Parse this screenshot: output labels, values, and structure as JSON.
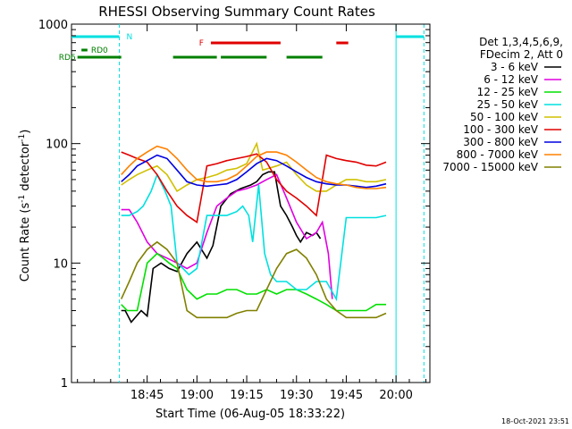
{
  "chart_data": {
    "type": "line",
    "title": "RHESSI Observing Summary Count Rates",
    "xlabel": "Start Time (06-Aug-05 18:33:22)",
    "ylabel_main": "Count Rate (s",
    "ylabel_sup1": "-1",
    "ylabel_mid": " detector",
    "ylabel_sup2": "-1",
    "ylabel_end": ")",
    "yscale": "log",
    "ylim": [
      1,
      1000
    ],
    "xlim_minutes": [
      18.37,
      20.17
    ],
    "x_ticks": [
      {
        "label": "18:45",
        "v": 18.75
      },
      {
        "label": "19:00",
        "v": 19.0
      },
      {
        "label": "19:15",
        "v": 19.25
      },
      {
        "label": "19:30",
        "v": 19.5
      },
      {
        "label": "19:45",
        "v": 19.75
      },
      {
        "label": "20:00",
        "v": 20.0
      }
    ],
    "y_ticks": [
      {
        "label": "1",
        "v": 1
      },
      {
        "label": "10",
        "v": 10
      },
      {
        "label": "100",
        "v": 100
      },
      {
        "label": "1000",
        "v": 1000
      }
    ],
    "legend_header": [
      "Det 1,3,4,5,6,9,",
      "FDecim 2, Att 0"
    ],
    "legend_position": "right",
    "timestamp": "18-Oct-2021 23:51",
    "flags": [
      {
        "label": "N",
        "color": "#00e0e0",
        "segments": [
          [
            18.37,
            18.61
          ],
          [
            20.0,
            20.14
          ]
        ]
      },
      {
        "label": "F",
        "color": "#e00000",
        "segments": [
          [
            19.07,
            19.42
          ],
          [
            19.7,
            19.76
          ]
        ]
      },
      {
        "label": "RD0",
        "color": "#008000",
        "segments": [
          [
            18.42,
            18.45
          ]
        ]
      },
      {
        "label": "RD6",
        "color": "#008000",
        "segments": [
          [
            18.4,
            18.62
          ],
          [
            18.88,
            19.1
          ],
          [
            19.12,
            19.35
          ],
          [
            19.45,
            19.63
          ]
        ]
      }
    ],
    "series": [
      {
        "name": "3 - 6 keV",
        "color": "#000000",
        "x": [
          18.62,
          18.64,
          18.67,
          18.72,
          18.75,
          18.78,
          18.82,
          18.86,
          18.9,
          18.95,
          19.0,
          19.05,
          19.08,
          19.12,
          19.17,
          19.22,
          19.27,
          19.3,
          19.33,
          19.36,
          19.39,
          19.42,
          19.45,
          19.48,
          19.5,
          19.52,
          19.55,
          19.58,
          19.6,
          19.62
        ],
        "y": [
          4,
          4,
          3.2,
          4,
          3.6,
          9,
          10,
          9,
          8.5,
          12,
          15,
          11,
          14,
          30,
          38,
          42,
          45,
          48,
          55,
          58,
          58,
          30,
          25,
          20,
          17,
          15,
          18,
          17,
          18,
          16
        ]
      },
      {
        "name": "6 - 12 keV",
        "color": "#e000e0",
        "x": [
          18.62,
          18.66,
          18.7,
          18.75,
          18.8,
          18.85,
          18.9,
          18.95,
          19.0,
          19.05,
          19.1,
          19.15,
          19.2,
          19.25,
          19.3,
          19.35,
          19.4,
          19.45,
          19.5,
          19.55,
          19.6,
          19.63,
          19.66,
          19.68
        ],
        "y": [
          28,
          28,
          22,
          15,
          12,
          11,
          10,
          9,
          10,
          18,
          30,
          35,
          40,
          42,
          45,
          50,
          55,
          35,
          22,
          16,
          18,
          22,
          12,
          5
        ]
      },
      {
        "name": "12 - 25 keV",
        "color": "#00e000",
        "x": [
          18.62,
          18.65,
          18.7,
          18.75,
          18.8,
          18.83,
          18.86,
          18.9,
          18.95,
          19.0,
          19.05,
          19.1,
          19.15,
          19.2,
          19.25,
          19.3,
          19.35,
          19.4,
          19.45,
          19.5,
          19.55,
          19.6,
          19.65,
          19.7,
          19.75,
          19.8,
          19.85,
          19.9,
          19.95
        ],
        "y": [
          4.5,
          4,
          4,
          10,
          12,
          11,
          10,
          9,
          6,
          5,
          5.5,
          5.5,
          6,
          6,
          5.5,
          5.5,
          6,
          5.5,
          6,
          6,
          5.5,
          5,
          4.5,
          4,
          4,
          4,
          4,
          4.5,
          4.5
        ]
      },
      {
        "name": "25 - 50 keV",
        "color": "#00e0e0",
        "x": [
          18.62,
          18.66,
          18.7,
          18.73,
          18.77,
          18.8,
          18.84,
          18.87,
          18.9,
          18.93,
          18.96,
          19.0,
          19.05,
          19.1,
          19.15,
          19.2,
          19.23,
          19.26,
          19.28,
          19.31,
          19.34,
          19.37,
          19.4,
          19.45,
          19.5,
          19.55,
          19.6,
          19.65,
          19.7,
          19.75,
          19.8,
          19.85,
          19.9,
          19.95
        ],
        "y": [
          25,
          25,
          27,
          30,
          40,
          55,
          40,
          30,
          10,
          9,
          8,
          9,
          25,
          25,
          25,
          27,
          30,
          25,
          15,
          45,
          12,
          8,
          7,
          7,
          6,
          6,
          7,
          7,
          5,
          24,
          24,
          24,
          24,
          25
        ]
      },
      {
        "name": "50 - 100 keV",
        "color": "#d0c000",
        "x": [
          18.62,
          18.66,
          18.7,
          18.75,
          18.8,
          18.85,
          18.9,
          18.95,
          19.0,
          19.05,
          19.1,
          19.15,
          19.2,
          19.25,
          19.3,
          19.33,
          19.36,
          19.4,
          19.45,
          19.5,
          19.55,
          19.6,
          19.65,
          19.7,
          19.75,
          19.8,
          19.85,
          19.9,
          19.95
        ],
        "y": [
          45,
          50,
          55,
          60,
          65,
          55,
          40,
          45,
          50,
          52,
          55,
          60,
          62,
          68,
          100,
          60,
          62,
          65,
          70,
          55,
          45,
          40,
          40,
          45,
          50,
          50,
          48,
          48,
          50
        ]
      },
      {
        "name": "100 - 300 keV",
        "color": "#e00000",
        "x": [
          18.62,
          18.66,
          18.7,
          18.75,
          18.8,
          18.85,
          18.9,
          18.95,
          19.0,
          19.05,
          19.1,
          19.15,
          19.2,
          19.25,
          19.3,
          19.35,
          19.4,
          19.45,
          19.5,
          19.55,
          19.6,
          19.65,
          19.7,
          19.75,
          19.8,
          19.85,
          19.9,
          19.95
        ],
        "y": [
          85,
          80,
          75,
          70,
          55,
          40,
          30,
          25,
          22,
          65,
          68,
          72,
          75,
          78,
          82,
          70,
          50,
          40,
          35,
          30,
          25,
          80,
          75,
          72,
          70,
          66,
          65,
          70
        ]
      },
      {
        "name": "300 - 800 keV",
        "color": "#0000e0",
        "x": [
          18.62,
          18.66,
          18.7,
          18.75,
          18.8,
          18.85,
          18.9,
          18.95,
          19.0,
          19.05,
          19.1,
          19.15,
          19.2,
          19.25,
          19.3,
          19.35,
          19.4,
          19.45,
          19.5,
          19.55,
          19.6,
          19.65,
          19.7,
          19.75,
          19.8,
          19.85,
          19.9,
          19.95
        ],
        "y": [
          48,
          55,
          65,
          72,
          80,
          75,
          60,
          48,
          45,
          44,
          45,
          46,
          50,
          58,
          68,
          75,
          72,
          65,
          58,
          52,
          48,
          46,
          45,
          45,
          44,
          43,
          44,
          46
        ]
      },
      {
        "name": "800 - 7000 keV",
        "color": "#ff8000",
        "x": [
          18.62,
          18.66,
          18.7,
          18.75,
          18.8,
          18.85,
          18.9,
          18.95,
          19.0,
          19.05,
          19.1,
          19.15,
          19.2,
          19.25,
          19.3,
          19.35,
          19.4,
          19.45,
          19.5,
          19.55,
          19.6,
          19.65,
          19.7,
          19.75,
          19.8,
          19.85,
          19.9,
          19.95
        ],
        "y": [
          55,
          65,
          75,
          85,
          95,
          90,
          75,
          60,
          50,
          48,
          48,
          50,
          55,
          65,
          78,
          85,
          85,
          80,
          70,
          60,
          52,
          48,
          46,
          45,
          43,
          42,
          42,
          43
        ]
      },
      {
        "name": "7000 - 15000 keV",
        "color": "#808000",
        "x": [
          18.62,
          18.66,
          18.7,
          18.75,
          18.8,
          18.85,
          18.9,
          18.95,
          19.0,
          19.05,
          19.1,
          19.15,
          19.2,
          19.25,
          19.3,
          19.35,
          19.4,
          19.45,
          19.5,
          19.55,
          19.6,
          19.65,
          19.7,
          19.75,
          19.8,
          19.85,
          19.9,
          19.95
        ],
        "y": [
          5,
          7,
          10,
          13,
          15,
          13,
          10,
          4,
          3.5,
          3.5,
          3.5,
          3.5,
          3.8,
          4,
          4,
          6,
          9,
          12,
          13,
          11,
          8,
          5,
          4,
          3.5,
          3.5,
          3.5,
          3.5,
          3.8
        ]
      }
    ],
    "dashed_vlines_color": "#00e0e0"
  }
}
